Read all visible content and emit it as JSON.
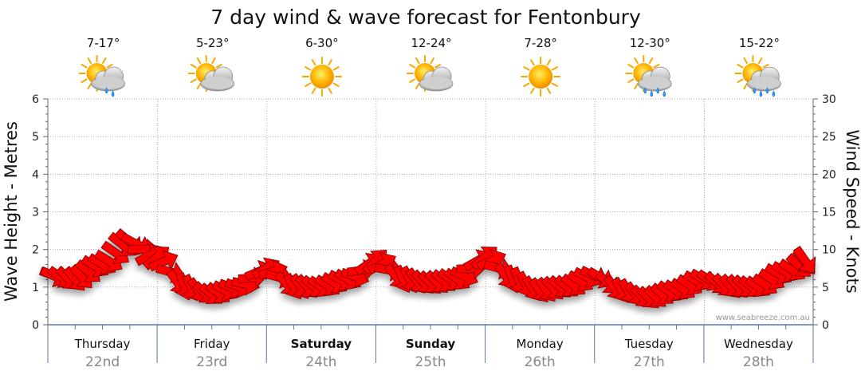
{
  "chart_data": {
    "type": "line",
    "title": "7 day wind & wave forecast for Fentonbury",
    "ylabel_left": "Wave Height - Metres",
    "ylabel_right": "Wind Speed - Knots",
    "ylim_left": [
      0,
      6
    ],
    "ylim_right": [
      0,
      30
    ],
    "yticks_left": [
      "0",
      "1",
      "2",
      "3",
      "4",
      "5",
      "6"
    ],
    "yticks_right": [
      "0",
      "5",
      "10",
      "15",
      "20",
      "25",
      "30"
    ],
    "watermark": "www.seabreeze.com.au",
    "days": [
      {
        "name": "Thursday",
        "date": "22nd",
        "temp": "7-17°",
        "icon": "sun-cloud-rain-icon",
        "bold": false
      },
      {
        "name": "Friday",
        "date": "23rd",
        "temp": "5-23°",
        "icon": "sun-cloud-icon",
        "bold": false
      },
      {
        "name": "Saturday",
        "date": "24th",
        "temp": "6-30°",
        "icon": "sun-icon",
        "bold": true
      },
      {
        "name": "Sunday",
        "date": "25th",
        "temp": "12-24°",
        "icon": "sun-cloud-icon",
        "bold": true
      },
      {
        "name": "Monday",
        "date": "26th",
        "temp": "7-28°",
        "icon": "sun-icon",
        "bold": false
      },
      {
        "name": "Tuesday",
        "date": "27th",
        "temp": "12-30°",
        "icon": "sun-cloud-heavy-rain-icon",
        "bold": false
      },
      {
        "name": "Wednesday",
        "date": "28th",
        "temp": "15-22°",
        "icon": "sun-cloud-heavy-rain-icon",
        "bold": false
      }
    ],
    "series": [
      {
        "name": "Wind",
        "x_days": [
          0.0,
          0.25,
          0.5,
          0.75,
          1.0,
          1.25,
          1.5,
          1.75,
          2.0,
          2.25,
          2.5,
          2.75,
          3.0,
          3.25,
          3.5,
          3.75,
          4.0,
          4.25,
          4.5,
          4.75,
          5.0,
          5.25,
          5.5,
          5.75,
          6.0,
          6.25,
          6.5,
          6.75,
          7.0
        ],
        "speed_knots": [
          6.5,
          6,
          8,
          11,
          9,
          5,
          4,
          5,
          7.5,
          5,
          5,
          6,
          8.5,
          6,
          5.5,
          6,
          9,
          6,
          4.5,
          5,
          6.5,
          4.5,
          3.5,
          4.5,
          6,
          5,
          5,
          7,
          8.5
        ],
        "direction_deg": [
          200,
          230,
          210,
          220,
          140,
          250,
          220,
          200,
          150,
          240,
          215,
          210,
          135,
          245,
          225,
          215,
          140,
          250,
          235,
          220,
          205,
          240,
          225,
          215,
          210,
          230,
          215,
          210,
          235
        ],
        "color": "#ff0000"
      }
    ]
  }
}
